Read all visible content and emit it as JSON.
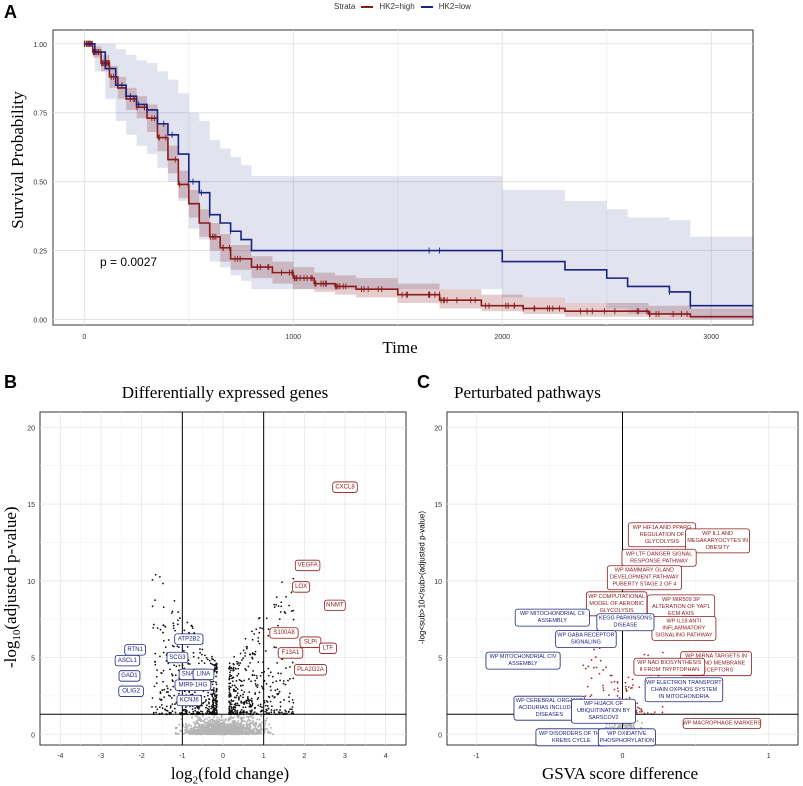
{
  "panelA": {
    "letter": "A",
    "legend": {
      "title": "Strata",
      "entries": [
        {
          "name": "HK2=high",
          "color": "#8B1A1A"
        },
        {
          "name": "HK2=low",
          "color": "#1A237E"
        }
      ]
    },
    "ylabel": "Survival Probability",
    "xlabel": "Time",
    "pvalue": "p = 0.0027",
    "yticks": [
      "0.00",
      "0.25",
      "0.50",
      "0.75",
      "1.00"
    ],
    "xticks": [
      "0",
      "1000",
      "2000",
      "3000"
    ]
  },
  "panelB": {
    "letter": "B",
    "title": "Differentially expressed genes",
    "xlabel_main": "log",
    "xlabel_sub": "2",
    "xlabel_rest": "(fold change)",
    "ylabel_pre": "-log",
    "ylabel_sub": "10",
    "ylabel_rest": "(adjusted p-value)",
    "yticks": [
      "0",
      "5",
      "10",
      "15",
      "20"
    ],
    "xticks": [
      "-4",
      "-3",
      "-2",
      "-1",
      "0",
      "1",
      "2",
      "3",
      "4"
    ]
  },
  "panelC": {
    "letter": "C",
    "title": "Perturbated pathways",
    "xlabel": "GSVA score difference",
    "ylabel": "-log<sub>10</sub>(adjusted p-value)",
    "yticks": [
      "0",
      "5",
      "10",
      "15",
      "20"
    ],
    "xticks": [
      "-1",
      "0",
      "1"
    ]
  },
  "chart_data": [
    {
      "type": "line",
      "subtype": "kaplan-meier",
      "xlabel": "Time",
      "ylabel": "Survival Probability",
      "xlim": [
        -150,
        3200
      ],
      "ylim": [
        -0.02,
        1.05
      ],
      "annotation": "p = 0.0027",
      "series": [
        {
          "name": "HK2=high",
          "color": "#8B1A1A",
          "x": [
            0,
            40,
            80,
            120,
            160,
            200,
            250,
            300,
            350,
            400,
            450,
            500,
            550,
            600,
            650,
            700,
            800,
            900,
            1000,
            1100,
            1200,
            1300,
            1500,
            1700,
            1900,
            2100,
            2300,
            2500,
            2700,
            2800,
            2900,
            3200
          ],
          "y": [
            1.0,
            0.97,
            0.93,
            0.88,
            0.84,
            0.8,
            0.77,
            0.73,
            0.66,
            0.58,
            0.49,
            0.42,
            0.35,
            0.3,
            0.26,
            0.22,
            0.19,
            0.17,
            0.15,
            0.13,
            0.12,
            0.11,
            0.09,
            0.07,
            0.05,
            0.04,
            0.03,
            0.03,
            0.02,
            0.02,
            0.01,
            0.01
          ],
          "upper": [
            1.0,
            0.99,
            0.96,
            0.92,
            0.88,
            0.84,
            0.81,
            0.78,
            0.71,
            0.63,
            0.54,
            0.47,
            0.4,
            0.35,
            0.31,
            0.27,
            0.23,
            0.21,
            0.19,
            0.17,
            0.16,
            0.15,
            0.13,
            0.11,
            0.09,
            0.08,
            0.06,
            0.06,
            0.05,
            0.05,
            0.04,
            0.04
          ],
          "lower": [
            1.0,
            0.95,
            0.9,
            0.84,
            0.8,
            0.76,
            0.73,
            0.68,
            0.61,
            0.53,
            0.44,
            0.37,
            0.3,
            0.25,
            0.21,
            0.18,
            0.15,
            0.13,
            0.11,
            0.1,
            0.09,
            0.08,
            0.06,
            0.04,
            0.03,
            0.02,
            0.01,
            0.01,
            0.0,
            0.0,
            0.0,
            0.0
          ]
        },
        {
          "name": "HK2=low",
          "color": "#1A237E",
          "x": [
            0,
            50,
            100,
            150,
            200,
            250,
            300,
            350,
            400,
            450,
            500,
            550,
            600,
            650,
            700,
            750,
            800,
            1000,
            1500,
            2000,
            2300,
            2500,
            2600,
            2800,
            2900,
            3200
          ],
          "y": [
            1.0,
            0.97,
            0.91,
            0.85,
            0.81,
            0.78,
            0.76,
            0.71,
            0.67,
            0.6,
            0.5,
            0.46,
            0.38,
            0.35,
            0.32,
            0.29,
            0.25,
            0.25,
            0.25,
            0.21,
            0.18,
            0.15,
            0.12,
            0.1,
            0.05,
            0.05
          ],
          "upper": [
            1.0,
            1.0,
            1.0,
            0.98,
            0.96,
            0.94,
            0.93,
            0.9,
            0.87,
            0.82,
            0.75,
            0.72,
            0.65,
            0.62,
            0.59,
            0.56,
            0.52,
            0.52,
            0.52,
            0.47,
            0.43,
            0.4,
            0.37,
            0.36,
            0.3,
            0.3
          ],
          "lower": [
            1.0,
            0.9,
            0.8,
            0.72,
            0.67,
            0.63,
            0.6,
            0.55,
            0.5,
            0.43,
            0.33,
            0.29,
            0.21,
            0.19,
            0.16,
            0.14,
            0.11,
            0.11,
            0.11,
            0.08,
            0.06,
            0.04,
            0.02,
            0.01,
            0.0,
            0.0
          ]
        }
      ]
    },
    {
      "type": "scatter",
      "subtype": "volcano",
      "title": "Differentially expressed genes",
      "xlabel": "log2(fold change)",
      "ylabel": "-log10(adjusted p-value)",
      "xlim": [
        -4.5,
        4.5
      ],
      "ylim": [
        -0.7,
        21
      ],
      "vlines": [
        -1,
        1
      ],
      "hline": 1.3,
      "labels_up": [
        {
          "text": "CXCL8",
          "x": 3.0,
          "y": 16.1
        },
        {
          "text": "VEGFA",
          "x": 2.08,
          "y": 11.0
        },
        {
          "text": "LOX",
          "x": 1.92,
          "y": 9.6
        },
        {
          "text": "NNMT",
          "x": 2.75,
          "y": 8.4
        },
        {
          "text": "S100A8",
          "x": 1.5,
          "y": 6.6
        },
        {
          "text": "SLPI",
          "x": 2.15,
          "y": 6.0
        },
        {
          "text": "LTF",
          "x": 2.58,
          "y": 5.6
        },
        {
          "text": "F13A1",
          "x": 1.66,
          "y": 5.3
        },
        {
          "text": "PLA2G2A",
          "x": 2.15,
          "y": 4.2
        }
      ],
      "labels_down": [
        {
          "text": "ATP2B2",
          "x": -0.84,
          "y": 6.2
        },
        {
          "text": "RTN1",
          "x": -2.16,
          "y": 5.5
        },
        {
          "text": "SCG3",
          "x": -1.12,
          "y": 5.0
        },
        {
          "text": "ASCL1",
          "x": -2.35,
          "y": 4.8
        },
        {
          "text": "GAD1",
          "x": -2.3,
          "y": 3.8
        },
        {
          "text": "SNAP91",
          "x": -0.73,
          "y": 3.9
        },
        {
          "text": "LINA",
          "x": -0.48,
          "y": 3.9
        },
        {
          "text": "MIR9-1HG",
          "x": -0.74,
          "y": 3.2
        },
        {
          "text": "OLIG2",
          "x": -2.26,
          "y": 2.8
        },
        {
          "text": "KCNJ6",
          "x": -0.83,
          "y": 2.2
        }
      ]
    },
    {
      "type": "scatter",
      "subtype": "volcano",
      "title": "Perturbated pathways",
      "xlabel": "GSVA score difference",
      "ylabel": "-log<sub>10</sub>(adjusted p-value)",
      "xlim": [
        -1.2,
        1.2
      ],
      "ylim": [
        -0.7,
        21
      ],
      "vline": 0,
      "hline": 1.3,
      "labels_up": [
        {
          "text": "WP HIF1A AND PPARG REGULATION OF GLYCOLYSIS",
          "x": 0.27,
          "y": 13.0
        },
        {
          "text": "WP IL1 AND MEGAKARYOCYTES IN OBESITY",
          "x": 0.65,
          "y": 12.6
        },
        {
          "text": "WP LTF DANGER SIGNAL RESPONSE PATHWAY",
          "x": 0.25,
          "y": 11.5
        },
        {
          "text": "WP MAMMARY GLAND DEVELOPMENT PATHWAY PUBERTY STAGE 2 OF 4",
          "x": 0.15,
          "y": 10.2
        },
        {
          "text": "WP COMPUTATIONAL MODEL OF AEROBIC GLYCOLYSIS",
          "x": -0.04,
          "y": 8.5
        },
        {
          "text": "WP MIR509 3P ALTERATION OF YAP1 ECM AXIS",
          "x": 0.4,
          "y": 8.3
        },
        {
          "text": "WP IL18 ANTI INFLAMMATORY SIGNALING PATHWAY",
          "x": 0.42,
          "y": 6.9
        },
        {
          "text": "WP MIRNA TARGETS IN ECM AND MEMBRANE RECEPTORS",
          "x": 0.64,
          "y": 4.6
        },
        {
          "text": "WP NAD BIOSYNTHESIS II FROM TRYPTOPHAN",
          "x": 0.32,
          "y": 4.4
        },
        {
          "text": "WP MACROPHAGE MARKERS",
          "x": 0.68,
          "y": 0.7
        }
      ],
      "labels_down": [
        {
          "text": "WP MITOCHONDRIAL CII ASSEMBLY",
          "x": -0.48,
          "y": 7.6
        },
        {
          "text": "KEGG PARKINSONS DISEASE",
          "x": 0.02,
          "y": 7.3
        },
        {
          "text": "WP GABA RECEPTOR SIGNALING",
          "x": -0.25,
          "y": 6.2
        },
        {
          "text": "WP MITOCHONDRIAL CIV ASSEMBLY",
          "x": -0.68,
          "y": 4.8
        },
        {
          "text": "WP ELECTRON TRANSPORT CHAIN OXPHOS SYSTEM IN MITOCHONDRIA",
          "x": 0.42,
          "y": 2.9
        },
        {
          "text": "WP CEREBRAL ORGANIC ACIDURIAS INCLUDING DISEASES",
          "x": -0.5,
          "y": 1.7
        },
        {
          "text": "WP HIJACK OF UBIQUITINATION BY SARSCOV2",
          "x": -0.13,
          "y": 1.5
        },
        {
          "text": "WP DISORDERS OF THE KREBS CYCLE",
          "x": -0.35,
          "y": -0.2
        },
        {
          "text": "WP OXIDATIVE PHOSPHORYLATION",
          "x": 0.03,
          "y": -0.2
        }
      ]
    }
  ]
}
